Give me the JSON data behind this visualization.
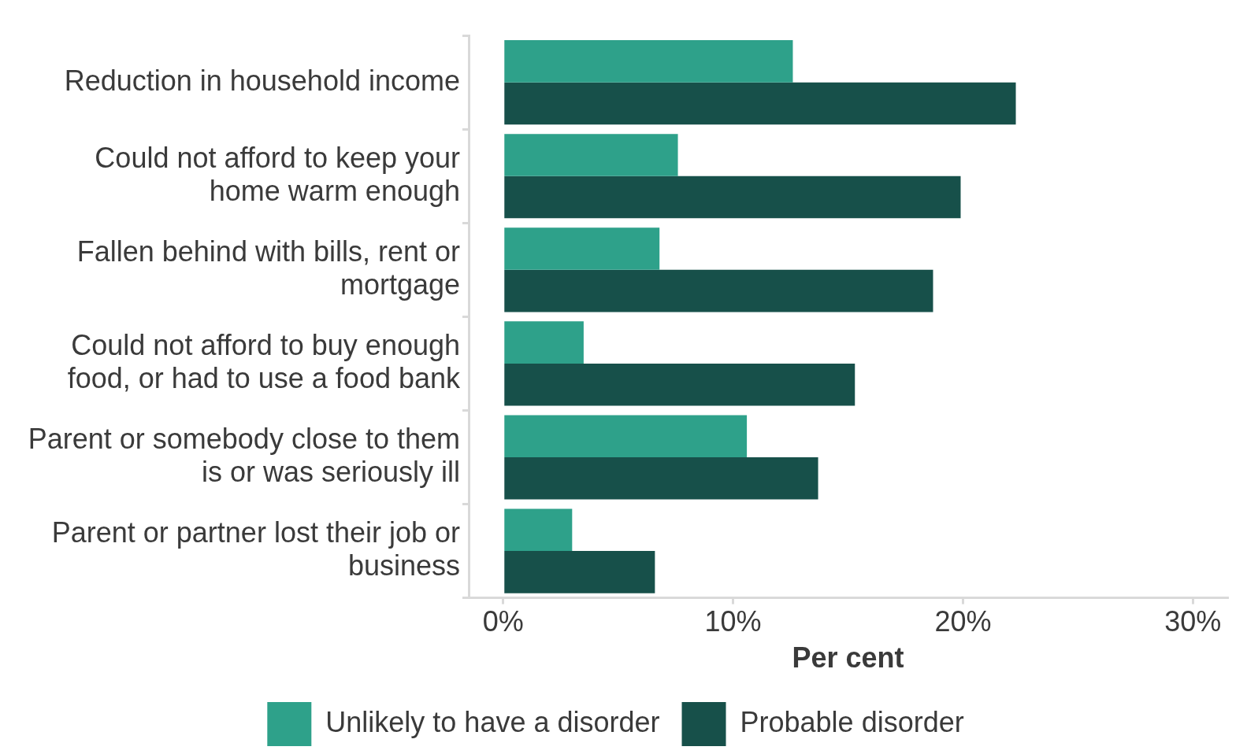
{
  "chart_data": {
    "type": "bar",
    "orientation": "horizontal",
    "xlabel": "Per cent",
    "categories": [
      "Reduction in household income",
      "Could not afford to keep your home warm enough",
      "Fallen behind with bills, rent or mortgage",
      "Could not afford to buy enough food, or had to use a food bank",
      "Parent or somebody close to them is or was seriously ill",
      "Parent or partner lost their job or business"
    ],
    "series": [
      {
        "name": "Unlikely to have a disorder",
        "color": "#2ea18a",
        "values": [
          12.6,
          7.6,
          6.8,
          3.5,
          10.6,
          3.0
        ]
      },
      {
        "name": "Probable disorder",
        "color": "#17504a",
        "values": [
          22.3,
          19.9,
          18.7,
          15.3,
          13.7,
          6.6
        ]
      }
    ],
    "xlim": [
      -1.5,
      31.5
    ],
    "xticks": [
      {
        "value": 0,
        "label": "0%"
      },
      {
        "value": 10,
        "label": "10%"
      },
      {
        "value": 20,
        "label": "20%"
      },
      {
        "value": 30,
        "label": "30%"
      }
    ],
    "grid": false,
    "legend": "bottom"
  }
}
